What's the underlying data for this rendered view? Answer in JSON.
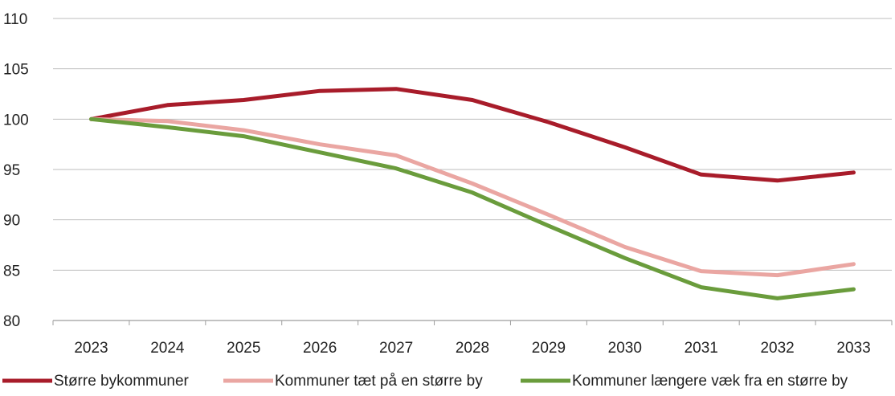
{
  "chart_data": {
    "type": "line",
    "title": "",
    "xlabel": "",
    "ylabel": "",
    "categories": [
      "2023",
      "2024",
      "2025",
      "2026",
      "2027",
      "2028",
      "2029",
      "2030",
      "2031",
      "2032",
      "2033"
    ],
    "ylim": [
      80,
      110
    ],
    "yticks": [
      80,
      85,
      90,
      95,
      100,
      105,
      110
    ],
    "grid": true,
    "legend_position": "bottom",
    "series": [
      {
        "name": "Større bykommuner",
        "color": "#a81c2a",
        "values": [
          100,
          101.4,
          101.9,
          102.8,
          103.0,
          101.9,
          99.7,
          97.2,
          94.5,
          93.9,
          94.7
        ]
      },
      {
        "name": "Kommuner tæt på en større by",
        "color": "#eaa6a2",
        "values": [
          100,
          99.8,
          98.9,
          97.5,
          96.4,
          93.6,
          90.5,
          87.3,
          84.9,
          84.5,
          85.6
        ]
      },
      {
        "name": "Kommuner længere væk fra en større by",
        "color": "#6a9c3c",
        "values": [
          100,
          99.2,
          98.3,
          96.7,
          95.1,
          92.7,
          89.4,
          86.2,
          83.3,
          82.2,
          83.1
        ]
      }
    ]
  }
}
